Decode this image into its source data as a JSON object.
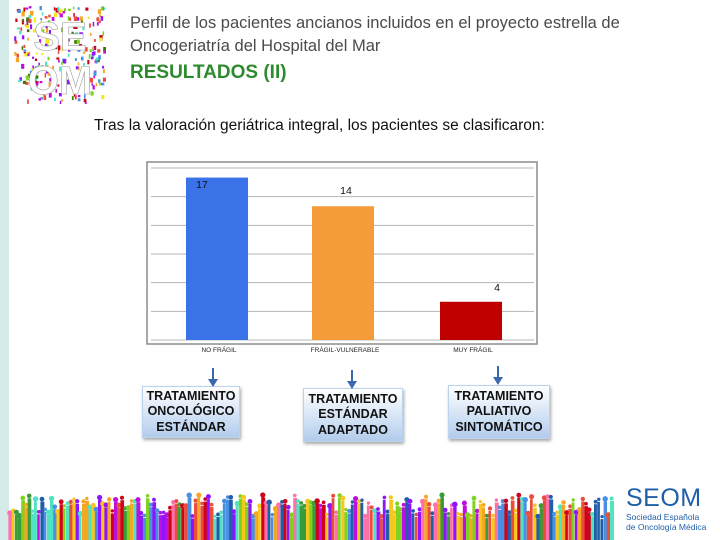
{
  "header": {
    "title": "Perfil de los pacientes ancianos incluidos en el proyecto estrella de Oncogeriatría  del Hospital del Mar",
    "subtitle": "RESULTADOS (II)"
  },
  "intro": "Tras la valoración geriátrica integral, los pacientes se clasificaron:",
  "logo": {
    "text_top": "SE",
    "text_bottom": "OM"
  },
  "chart_data": {
    "type": "bar",
    "categories": [
      "NO FRÁGIL",
      "FRÁGIL-VULNERABLE",
      "MUY FRÁGIL"
    ],
    "values": [
      17,
      14,
      4
    ],
    "data_labels": [
      "17",
      "14",
      "4"
    ],
    "colors": [
      "#3a73e8",
      "#f59c3a",
      "#c00000"
    ],
    "ylim": [
      0,
      18
    ],
    "grid": true,
    "legend": "none"
  },
  "treatments": [
    {
      "label": "TRATAMIENTO\nONCOLÓGICO\nESTÁNDAR"
    },
    {
      "label": "TRATAMIENTO\nESTÁNDAR\nADAPTADO"
    },
    {
      "label": "TRATAMIENTO\nPALIATIVO\nSINTOMÁTICO"
    }
  ],
  "brand": {
    "name": "SEOM",
    "sub1": "Sociedad Española",
    "sub2": "de Oncología Médica"
  }
}
